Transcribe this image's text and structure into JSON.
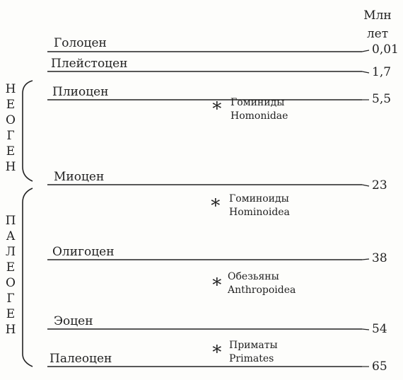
{
  "unit_label": [
    "Млн",
    "лет"
  ],
  "epochs": [
    {
      "name": "Голоцен",
      "age": "0,01"
    },
    {
      "name": "Плейстоцен",
      "age": "1,7"
    },
    {
      "name": "Плиоцен",
      "age": "5,5"
    },
    {
      "name": "Миоцен",
      "age": "23"
    },
    {
      "name": "Олигоцен",
      "age": "38"
    },
    {
      "name": "Эоцен",
      "age": "54"
    },
    {
      "name": "Палеоцен",
      "age": "65"
    }
  ],
  "periods": [
    {
      "letters": [
        "Н",
        "Е",
        "О",
        "Г",
        "Е",
        "Н"
      ]
    },
    {
      "letters": [
        "П",
        "А",
        "Л",
        "Е",
        "О",
        "Г",
        "Е",
        "Н"
      ]
    }
  ],
  "taxa": [
    {
      "ru": "Гоминиды",
      "latin": "Homonidae"
    },
    {
      "ru": "Гоминоиды",
      "latin": "Hominoidea"
    },
    {
      "ru": "Обезьяны",
      "latin": "Anthropoidea"
    },
    {
      "ru": "Приматы",
      "latin": "Primates"
    }
  ],
  "colors": {
    "ink": "#222222",
    "paper": "#fdfdfb"
  }
}
